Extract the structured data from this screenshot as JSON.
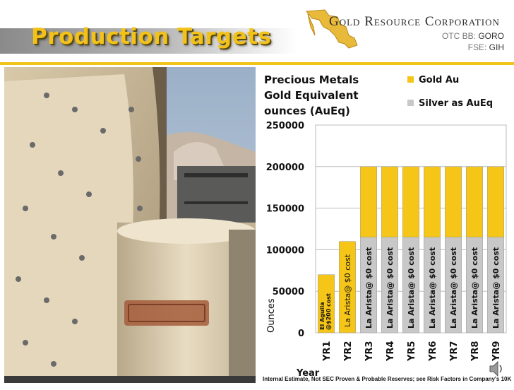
{
  "slide": {
    "title": "Production Targets",
    "company": "Gold Resource Corporation",
    "tickers": [
      {
        "exchange": "OTC BB:",
        "symbol": "GORO"
      },
      {
        "exchange": "FSE:",
        "symbol": "GIH"
      }
    ],
    "footnote": "Internal Estimate, Not SEC Proven & Probable Reserves; see Risk Factors in Company's 10K"
  },
  "colors": {
    "gold": "#f5c518",
    "silver": "#c8c8c8",
    "accent": "#f0c419"
  },
  "chart_data": {
    "type": "bar",
    "stacked": true,
    "title": "Precious Metals Gold Equivalent ounces (AuEq)",
    "title_lines": [
      "Precious Metals",
      "Gold Equivalent",
      "ounces (AuEq)"
    ],
    "xlabel": "Year",
    "ylabel": "Ounces",
    "ylim": [
      0,
      250000
    ],
    "yticks": [
      0,
      50000,
      100000,
      150000,
      200000,
      250000
    ],
    "categories": [
      "YR1",
      "YR2",
      "YR3",
      "YR4",
      "YR5",
      "YR6",
      "YR7",
      "YR8",
      "YR9"
    ],
    "series": [
      {
        "name": "Silver as AuEq",
        "color": "#c8c8c8",
        "values": [
          0,
          0,
          115000,
          115000,
          115000,
          115000,
          115000,
          115000,
          115000
        ]
      },
      {
        "name": "Gold Au",
        "color": "#f5c518",
        "values": [
          70000,
          110000,
          85000,
          85000,
          85000,
          85000,
          85000,
          85000,
          85000
        ]
      }
    ],
    "legend": {
      "position": "top-right",
      "entries": [
        "Gold Au",
        "Silver as AuEq"
      ]
    },
    "bar_labels": [
      [
        "El Aguila",
        "@$200 cost"
      ],
      [
        "La Arista@ $0 cost"
      ],
      [
        "La Arista@ $0 cost"
      ],
      [
        "La Arista@ $0 cost"
      ],
      [
        "La Arista@ $0 cost"
      ],
      [
        "La Arista@ $0 cost"
      ],
      [
        "La Arista@ $0 cost"
      ],
      [
        "La Arista@ $0 cost"
      ],
      [
        "La Arista@ $0 cost"
      ]
    ],
    "grid": true
  }
}
